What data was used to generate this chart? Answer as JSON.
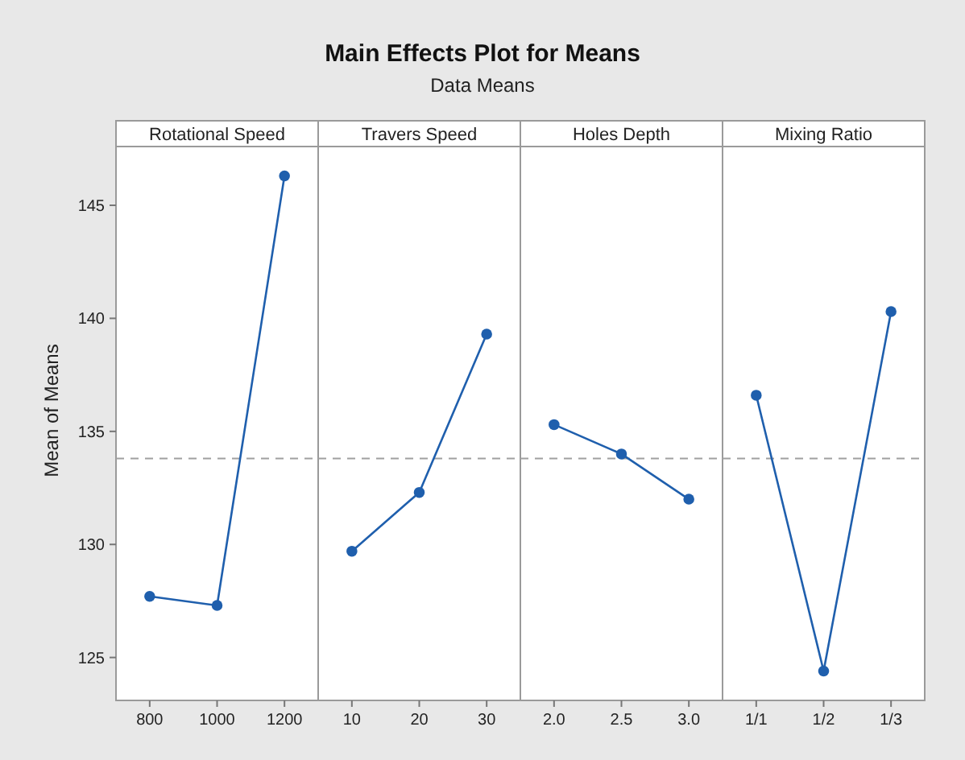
{
  "chart_data": [
    {
      "type": "other",
      "title": "Main Effects Plot for Means",
      "subtitle": "Data Means"
    },
    {
      "type": "line",
      "title": "Rotational Speed",
      "ylabel": "Mean of Means",
      "categories": [
        "800",
        "1000",
        "1200"
      ],
      "series": [
        {
          "color": "#1f5fad",
          "values": [
            127.7,
            127.3,
            146.3
          ]
        }
      ],
      "ylim": [
        123.1,
        147.6
      ],
      "yticks": [
        125,
        130,
        135,
        140,
        145
      ],
      "ref_lines": [
        {
          "axis": "y",
          "value": 133.8,
          "color": "#a0a0a0",
          "line_style": "dashed"
        }
      ],
      "marker": "circle",
      "grid": false
    },
    {
      "type": "line",
      "title": "Travers Speed",
      "categories": [
        "10",
        "20",
        "30"
      ],
      "series": [
        {
          "color": "#1f5fad",
          "values": [
            129.7,
            132.3,
            139.3
          ]
        }
      ],
      "ylim": [
        123.1,
        147.6
      ],
      "tick_labels": "x",
      "ref_lines": [
        {
          "axis": "y",
          "value": 133.8,
          "color": "#a0a0a0",
          "line_style": "dashed"
        }
      ],
      "marker": "circle",
      "grid": false
    },
    {
      "type": "line",
      "title": "Holes Depth",
      "categories": [
        "2.0",
        "2.5",
        "3.0"
      ],
      "series": [
        {
          "color": "#1f5fad",
          "values": [
            135.3,
            134.0,
            132.0
          ]
        }
      ],
      "ylim": [
        123.1,
        147.6
      ],
      "tick_labels": "x",
      "ref_lines": [
        {
          "axis": "y",
          "value": 133.8,
          "color": "#a0a0a0",
          "line_style": "dashed"
        }
      ],
      "marker": "circle",
      "grid": false
    },
    {
      "type": "line",
      "title": "Mixing Ratio",
      "categories": [
        "1/1",
        "1/2",
        "1/3"
      ],
      "series": [
        {
          "color": "#1f5fad",
          "values": [
            136.6,
            124.4,
            140.3
          ]
        }
      ],
      "ylim": [
        123.1,
        147.6
      ],
      "tick_labels": "x",
      "ref_lines": [
        {
          "axis": "y",
          "value": 133.8,
          "color": "#a0a0a0",
          "line_style": "dashed"
        }
      ],
      "marker": "circle",
      "grid": false
    }
  ]
}
